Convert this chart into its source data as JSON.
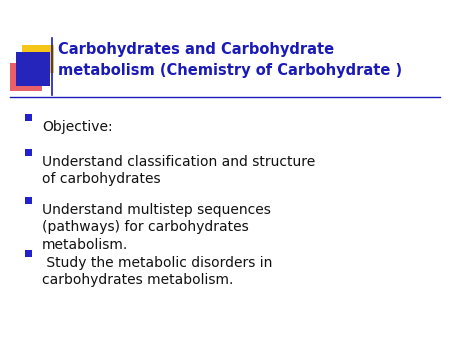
{
  "background_color": "#ffffff",
  "title_line1": "Carbohydrates and Carbohydrate",
  "title_line2": "metabolism (Chemistry of Carbohydrate )",
  "title_color": "#1a1ab8",
  "title_fontsize": 10.5,
  "title_fontweight": "bold",
  "bullet_color": "#111111",
  "bullet_marker_color": "#2222cc",
  "bullet_fontsize": 10,
  "bullet_items": [
    "Objective:",
    "Understand classification and structure\nof carbohydrates",
    "Understand multistep sequences\n(pathways) for carbohydrates\nmetabolism.",
    " Study the metabolic disorders in\ncarbohydrates metabolism."
  ],
  "separator_color": "#1a1ab8",
  "logo_yellow_color": "#f5c518",
  "logo_red_color": "#e8606a",
  "logo_blue_color": "#2525bb"
}
